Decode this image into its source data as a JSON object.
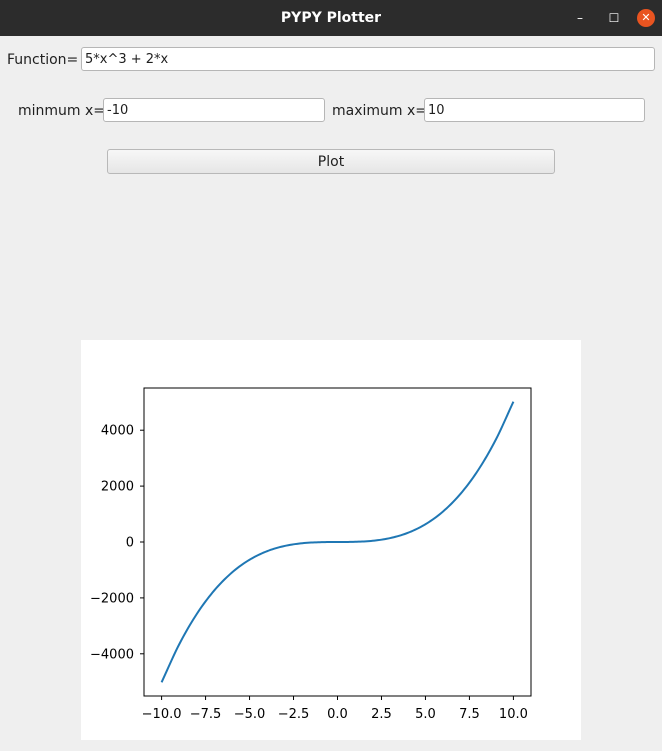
{
  "window": {
    "title": "PYPY Plotter",
    "minimize_glyph": "–",
    "maximize_glyph": "☐",
    "close_glyph": "✕"
  },
  "form": {
    "function_label": "Function=",
    "function_value": "5*x^3 + 2*x",
    "min_label": "minmum x=",
    "min_value": "-10",
    "max_label": "maximum x=",
    "max_value": "10",
    "plot_button_label": "Plot"
  },
  "colors": {
    "titlebar": "#2c2c2c",
    "close_button": "#e95420",
    "line": "#1f77b4"
  },
  "chart_data": {
    "type": "line",
    "expression": "5*x^3 + 2*x",
    "x_range": [
      -10,
      10
    ],
    "xlim": [
      -11,
      11
    ],
    "ylim": [
      -5510,
      5510
    ],
    "x_ticks": [
      -10,
      -7.5,
      -5,
      -2.5,
      0,
      2.5,
      5,
      7.5,
      10
    ],
    "x_tick_labels": [
      "−10.0",
      "−7.5",
      "−5.0",
      "−2.5",
      "0.0",
      "2.5",
      "5.0",
      "7.5",
      "10.0"
    ],
    "y_ticks": [
      -4000,
      -2000,
      0,
      2000,
      4000
    ],
    "y_tick_labels": [
      "−4000",
      "−2000",
      "0",
      "2000",
      "4000"
    ],
    "series": [
      {
        "x": [
          -10,
          -9,
          -8,
          -7,
          -6,
          -5,
          -4,
          -3,
          -2,
          -1,
          0,
          1,
          2,
          3,
          4,
          5,
          6,
          7,
          8,
          9,
          10
        ],
        "y": [
          -5020,
          -3663,
          -2576,
          -1729,
          -1092,
          -635,
          -328,
          -141,
          -44,
          -7,
          0,
          7,
          44,
          141,
          328,
          635,
          1092,
          1729,
          2576,
          3663,
          5020
        ]
      }
    ],
    "grid": false,
    "legend": "none"
  }
}
